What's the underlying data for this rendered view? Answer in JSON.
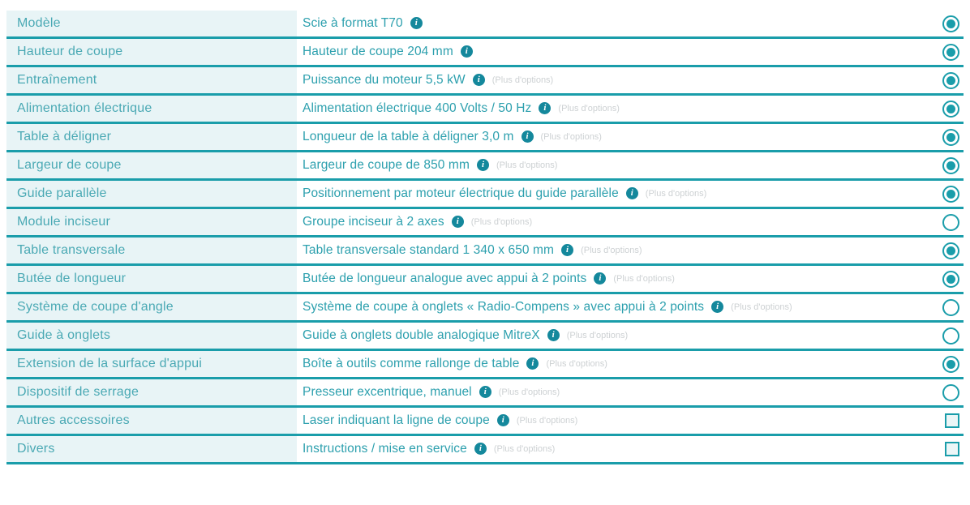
{
  "colors": {
    "teal": "#1a9daa",
    "label": "#4aa9b4",
    "value": "#2da0ae",
    "left_bg": "#e8f4f6",
    "info": "#14889c",
    "muted": "#cdd1d3",
    "page_bg": "#ffffff"
  },
  "icons": {
    "info_glyph": "i"
  },
  "more_label": "(Plus d'options)",
  "rows": [
    {
      "label": "Modèle",
      "value": "Scie à format T70",
      "more": false,
      "control": "radio",
      "selected": true
    },
    {
      "label": "Hauteur de coupe",
      "value": "Hauteur de coupe 204 mm",
      "more": false,
      "control": "radio",
      "selected": true
    },
    {
      "label": "Entraînement",
      "value": "Puissance du moteur 5,5 kW",
      "more": true,
      "control": "radio",
      "selected": true
    },
    {
      "label": "Alimentation électrique",
      "value": "Alimentation électrique 400 Volts / 50 Hz",
      "more": true,
      "control": "radio",
      "selected": true
    },
    {
      "label": "Table à déligner",
      "value": "Longueur de la table à déligner 3,0 m",
      "more": true,
      "control": "radio",
      "selected": true
    },
    {
      "label": "Largeur de coupe",
      "value": "Largeur de coupe de 850 mm",
      "more": true,
      "control": "radio",
      "selected": true
    },
    {
      "label": "Guide parallèle",
      "value": "Positionnement par moteur électrique du guide parallèle",
      "more": true,
      "control": "radio",
      "selected": true
    },
    {
      "label": "Module inciseur",
      "value": "Groupe inciseur à 2 axes",
      "more": true,
      "control": "radio",
      "selected": false
    },
    {
      "label": "Table transversale",
      "value": "Table transversale standard 1 340 x 650 mm",
      "more": true,
      "control": "radio",
      "selected": true
    },
    {
      "label": "Butée de longueur",
      "value": "Butée de longueur analogue avec appui à 2 points",
      "more": true,
      "control": "radio",
      "selected": true
    },
    {
      "label": "Système de coupe d'angle",
      "value": "Système de coupe à onglets « Radio-Compens » avec appui à 2 points",
      "more": true,
      "control": "radio",
      "selected": false
    },
    {
      "label": "Guide à onglets",
      "value": "Guide à onglets double analogique MitreX",
      "more": true,
      "control": "radio",
      "selected": false
    },
    {
      "label": "Extension de la surface d'appui",
      "value": "Boîte à outils comme rallonge de table",
      "more": true,
      "control": "radio",
      "selected": true
    },
    {
      "label": "Dispositif de serrage",
      "value": "Presseur excentrique, manuel",
      "more": true,
      "control": "radio",
      "selected": false
    },
    {
      "label": "Autres accessoires",
      "value": "Laser indiquant la ligne de coupe",
      "more": true,
      "control": "checkbox",
      "selected": false
    },
    {
      "label": "Divers",
      "value": "Instructions / mise en service",
      "more": true,
      "control": "checkbox",
      "selected": false
    }
  ]
}
